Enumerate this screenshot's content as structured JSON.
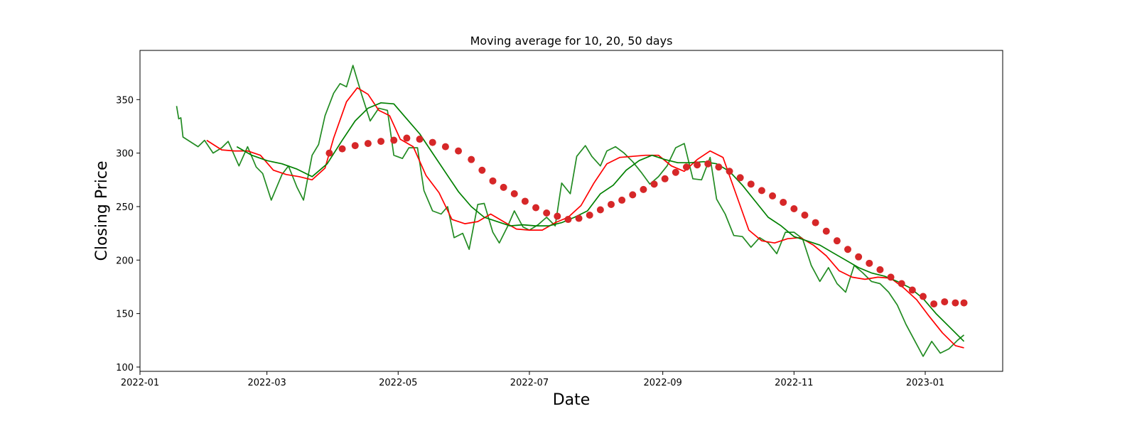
{
  "chart_data": {
    "type": "line",
    "title": "Moving average for 10, 20, 50 days",
    "xlabel": "Date",
    "ylabel": "Closing Price",
    "xlim": [
      "2022-01-01",
      "2023-02-06"
    ],
    "ylim": [
      96,
      396
    ],
    "x_ticks": [
      "2022-01-01",
      "2022-03-01",
      "2022-05-01",
      "2022-07-01",
      "2022-09-01",
      "2022-11-01",
      "2023-01-01"
    ],
    "x_tick_labels": [
      "2022-01",
      "2022-03",
      "2022-05",
      "2022-07",
      "2022-09",
      "2022-11",
      "2023-01"
    ],
    "y_ticks": [
      100,
      150,
      200,
      250,
      300,
      350
    ],
    "grid": false,
    "colors": {
      "close": "#228b22",
      "ma10": "#ff0000",
      "ma20": "#008000",
      "ma50": "#d62728"
    },
    "series": [
      {
        "key": "close",
        "style": "line",
        "x": [
          "2022-01-18",
          "2022-01-19",
          "2022-01-20",
          "2022-01-21",
          "2022-01-28",
          "2022-01-31",
          "2022-02-04",
          "2022-02-08",
          "2022-02-11",
          "2022-02-16",
          "2022-02-20",
          "2022-02-24",
          "2022-02-27",
          "2022-03-03",
          "2022-03-08",
          "2022-03-11",
          "2022-03-15",
          "2022-03-18",
          "2022-03-22",
          "2022-03-25",
          "2022-03-28",
          "2022-04-01",
          "2022-04-04",
          "2022-04-07",
          "2022-04-10",
          "2022-04-14",
          "2022-04-18",
          "2022-04-22",
          "2022-04-26",
          "2022-04-29",
          "2022-05-03",
          "2022-05-06",
          "2022-05-10",
          "2022-05-13",
          "2022-05-17",
          "2022-05-21",
          "2022-05-24",
          "2022-05-27",
          "2022-05-31",
          "2022-06-03",
          "2022-06-07",
          "2022-06-10",
          "2022-06-14",
          "2022-06-17",
          "2022-06-21",
          "2022-06-24",
          "2022-06-28",
          "2022-07-01",
          "2022-07-05",
          "2022-07-09",
          "2022-07-13",
          "2022-07-16",
          "2022-07-20",
          "2022-07-23",
          "2022-07-27",
          "2022-07-30",
          "2022-08-03",
          "2022-08-06",
          "2022-08-10",
          "2022-08-14",
          "2022-08-18",
          "2022-08-22",
          "2022-08-26",
          "2022-08-30",
          "2022-09-03",
          "2022-09-07",
          "2022-09-11",
          "2022-09-15",
          "2022-09-19",
          "2022-09-23",
          "2022-09-26",
          "2022-09-30",
          "2022-10-04",
          "2022-10-08",
          "2022-10-12",
          "2022-10-16",
          "2022-10-20",
          "2022-10-24",
          "2022-10-28",
          "2022-11-01",
          "2022-11-05",
          "2022-11-09",
          "2022-11-13",
          "2022-11-17",
          "2022-11-21",
          "2022-11-25",
          "2022-11-29",
          "2022-12-03",
          "2022-12-07",
          "2022-12-11",
          "2022-12-15",
          "2022-12-19",
          "2022-12-23",
          "2022-12-27",
          "2022-12-31",
          "2023-01-04",
          "2023-01-08",
          "2023-01-12",
          "2023-01-16",
          "2023-01-19"
        ],
        "y": [
          344,
          332,
          333,
          315,
          306,
          312,
          300,
          305,
          311,
          288,
          306,
          287,
          281,
          256,
          280,
          288,
          268,
          256,
          298,
          308,
          335,
          356,
          365,
          362,
          382,
          355,
          330,
          342,
          340,
          298,
          295,
          305,
          305,
          265,
          246,
          243,
          250,
          221,
          225,
          210,
          252,
          253,
          226,
          216,
          232,
          246,
          231,
          228,
          233,
          240,
          232,
          272,
          262,
          297,
          307,
          297,
          288,
          302,
          306,
          300,
          292,
          282,
          271,
          278,
          288,
          305,
          309,
          276,
          275,
          296,
          257,
          243,
          223,
          222,
          212,
          221,
          216,
          206,
          226,
          226,
          220,
          195,
          180,
          193,
          178,
          170,
          195,
          188,
          180,
          178,
          170,
          158,
          140,
          125,
          110,
          124,
          113,
          117,
          125,
          130
        ]
      },
      {
        "key": "ma10",
        "style": "line",
        "x": [
          "2022-02-01",
          "2022-02-08",
          "2022-02-14",
          "2022-02-20",
          "2022-02-26",
          "2022-03-04",
          "2022-03-10",
          "2022-03-16",
          "2022-03-22",
          "2022-03-28",
          "2022-04-01",
          "2022-04-07",
          "2022-04-12",
          "2022-04-17",
          "2022-04-22",
          "2022-04-27",
          "2022-05-02",
          "2022-05-08",
          "2022-05-14",
          "2022-05-20",
          "2022-05-26",
          "2022-06-01",
          "2022-06-07",
          "2022-06-13",
          "2022-06-19",
          "2022-06-25",
          "2022-07-01",
          "2022-07-07",
          "2022-07-13",
          "2022-07-19",
          "2022-07-25",
          "2022-07-31",
          "2022-08-06",
          "2022-08-12",
          "2022-08-18",
          "2022-08-24",
          "2022-08-30",
          "2022-09-05",
          "2022-09-11",
          "2022-09-17",
          "2022-09-23",
          "2022-09-29",
          "2022-10-05",
          "2022-10-11",
          "2022-10-17",
          "2022-10-23",
          "2022-10-29",
          "2022-11-04",
          "2022-11-10",
          "2022-11-16",
          "2022-11-22",
          "2022-11-28",
          "2022-12-04",
          "2022-12-10",
          "2022-12-16",
          "2022-12-22",
          "2022-12-28",
          "2023-01-03",
          "2023-01-09",
          "2023-01-15",
          "2023-01-19"
        ],
        "y": [
          312,
          303,
          302,
          302,
          298,
          284,
          280,
          278,
          275,
          286,
          314,
          348,
          361,
          355,
          340,
          335,
          313,
          306,
          279,
          263,
          238,
          234,
          236,
          243,
          236,
          229,
          228,
          228,
          235,
          240,
          251,
          272,
          290,
          296,
          297,
          298,
          298,
          288,
          283,
          294,
          302,
          296,
          262,
          228,
          218,
          216,
          220,
          221,
          214,
          204,
          190,
          184,
          182,
          184,
          183,
          174,
          163,
          147,
          132,
          120,
          118
        ]
      },
      {
        "key": "ma20",
        "style": "line",
        "x": [
          "2022-02-15",
          "2022-02-22",
          "2022-03-01",
          "2022-03-08",
          "2022-03-15",
          "2022-03-22",
          "2022-03-29",
          "2022-04-05",
          "2022-04-11",
          "2022-04-17",
          "2022-04-23",
          "2022-04-29",
          "2022-05-05",
          "2022-05-11",
          "2022-05-17",
          "2022-05-23",
          "2022-05-29",
          "2022-06-04",
          "2022-06-10",
          "2022-06-16",
          "2022-06-22",
          "2022-06-28",
          "2022-07-04",
          "2022-07-10",
          "2022-07-16",
          "2022-07-22",
          "2022-07-28",
          "2022-08-03",
          "2022-08-09",
          "2022-08-15",
          "2022-08-21",
          "2022-08-27",
          "2022-09-02",
          "2022-09-08",
          "2022-09-14",
          "2022-09-20",
          "2022-09-26",
          "2022-10-02",
          "2022-10-08",
          "2022-10-14",
          "2022-10-20",
          "2022-10-26",
          "2022-11-01",
          "2022-11-07",
          "2022-11-13",
          "2022-11-19",
          "2022-11-25",
          "2022-12-01",
          "2022-12-07",
          "2022-12-13",
          "2022-12-19",
          "2022-12-25",
          "2022-12-31",
          "2023-01-06",
          "2023-01-12",
          "2023-01-19"
        ],
        "y": [
          306,
          298,
          293,
          290,
          285,
          278,
          290,
          312,
          330,
          342,
          347,
          346,
          332,
          318,
          300,
          282,
          264,
          250,
          240,
          236,
          232,
          233,
          232,
          232,
          235,
          240,
          246,
          262,
          270,
          284,
          293,
          298,
          294,
          291,
          291,
          292,
          290,
          283,
          270,
          255,
          240,
          232,
          222,
          218,
          214,
          207,
          200,
          193,
          188,
          185,
          180,
          174,
          164,
          150,
          138,
          124
        ]
      },
      {
        "key": "ma50",
        "style": "dots",
        "x": [
          "2022-03-30",
          "2022-04-05",
          "2022-04-11",
          "2022-04-17",
          "2022-04-23",
          "2022-04-29",
          "2022-05-05",
          "2022-05-11",
          "2022-05-17",
          "2022-05-23",
          "2022-05-29",
          "2022-06-04",
          "2022-06-09",
          "2022-06-14",
          "2022-06-19",
          "2022-06-24",
          "2022-06-29",
          "2022-07-04",
          "2022-07-09",
          "2022-07-14",
          "2022-07-19",
          "2022-07-24",
          "2022-07-29",
          "2022-08-03",
          "2022-08-08",
          "2022-08-13",
          "2022-08-18",
          "2022-08-23",
          "2022-08-28",
          "2022-09-02",
          "2022-09-07",
          "2022-09-12",
          "2022-09-17",
          "2022-09-22",
          "2022-09-27",
          "2022-10-02",
          "2022-10-07",
          "2022-10-12",
          "2022-10-17",
          "2022-10-22",
          "2022-10-27",
          "2022-11-01",
          "2022-11-06",
          "2022-11-11",
          "2022-11-16",
          "2022-11-21",
          "2022-11-26",
          "2022-12-01",
          "2022-12-06",
          "2022-12-11",
          "2022-12-16",
          "2022-12-21",
          "2022-12-26",
          "2022-12-31",
          "2023-01-05",
          "2023-01-10",
          "2023-01-15",
          "2023-01-19"
        ],
        "y": [
          300,
          304,
          307,
          309,
          311,
          312,
          314,
          313,
          310,
          306,
          302,
          294,
          284,
          274,
          268,
          262,
          255,
          249,
          244,
          241,
          238,
          239,
          242,
          247,
          252,
          256,
          261,
          266,
          271,
          276,
          282,
          287,
          289,
          290,
          287,
          283,
          277,
          271,
          265,
          260,
          254,
          248,
          242,
          235,
          227,
          218,
          210,
          203,
          197,
          191,
          184,
          178,
          172,
          166,
          159,
          161,
          160,
          160
        ]
      }
    ]
  }
}
